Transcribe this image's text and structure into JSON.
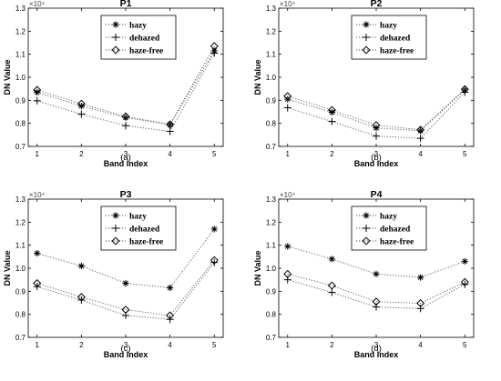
{
  "chart_data": [
    {
      "type": "line",
      "title": "P1",
      "caption": "(a)",
      "xlabel": "Band Index",
      "ylabel": "DN Value",
      "exponent": "×10⁴",
      "x": [
        1,
        2,
        3,
        4,
        5
      ],
      "x_ticks": [
        "1",
        "2",
        "3",
        "4",
        "5"
      ],
      "y_ticks": [
        "0.7",
        "0.8",
        "0.9",
        "1.0",
        "1.1",
        "1.2",
        "1.3"
      ],
      "xlim": [
        0.8,
        5.2
      ],
      "ylim": [
        0.7,
        1.3
      ],
      "legend_position": "top-center",
      "series": [
        {
          "name": "hazy",
          "marker": "asterisk",
          "values": [
            0.935,
            0.875,
            0.825,
            0.795,
            1.115
          ]
        },
        {
          "name": "dehazed",
          "marker": "plus",
          "values": [
            0.898,
            0.84,
            0.79,
            0.765,
            1.105
          ]
        },
        {
          "name": "haze-free",
          "marker": "diamond",
          "values": [
            0.945,
            0.885,
            0.83,
            0.795,
            1.135
          ]
        }
      ]
    },
    {
      "type": "line",
      "title": "P2",
      "caption": "(b)",
      "xlabel": "Band Index",
      "ylabel": "DN Value",
      "exponent": "×10⁴",
      "x": [
        1,
        2,
        3,
        4,
        5
      ],
      "x_ticks": [
        "1",
        "2",
        "3",
        "4",
        "5"
      ],
      "y_ticks": [
        "0.7",
        "0.8",
        "0.9",
        "1.0",
        "1.1",
        "1.2",
        "1.3"
      ],
      "xlim": [
        0.8,
        5.2
      ],
      "ylim": [
        0.7,
        1.3
      ],
      "legend_position": "top-center",
      "series": [
        {
          "name": "hazy",
          "marker": "asterisk",
          "values": [
            0.905,
            0.848,
            0.78,
            0.768,
            0.945
          ]
        },
        {
          "name": "dehazed",
          "marker": "plus",
          "values": [
            0.868,
            0.808,
            0.745,
            0.735,
            0.935
          ]
        },
        {
          "name": "haze-free",
          "marker": "diamond",
          "values": [
            0.918,
            0.858,
            0.792,
            0.772,
            0.948
          ]
        }
      ]
    },
    {
      "type": "line",
      "title": "P3",
      "caption": "(c)",
      "xlabel": "Band Index",
      "ylabel": "DN Value",
      "exponent": "×10⁴",
      "x": [
        1,
        2,
        3,
        4,
        5
      ],
      "x_ticks": [
        "1",
        "2",
        "3",
        "4",
        "5"
      ],
      "y_ticks": [
        "0.7",
        "0.8",
        "0.9",
        "1.0",
        "1.1",
        "1.2",
        "1.3"
      ],
      "xlim": [
        0.8,
        5.2
      ],
      "ylim": [
        0.7,
        1.3
      ],
      "legend_position": "top-center",
      "series": [
        {
          "name": "hazy",
          "marker": "asterisk",
          "values": [
            1.065,
            1.01,
            0.935,
            0.915,
            1.17
          ]
        },
        {
          "name": "dehazed",
          "marker": "plus",
          "values": [
            0.92,
            0.862,
            0.795,
            0.778,
            1.025
          ]
        },
        {
          "name": "haze-free",
          "marker": "diamond",
          "values": [
            0.935,
            0.875,
            0.82,
            0.795,
            1.035
          ]
        }
      ]
    },
    {
      "type": "line",
      "title": "P4",
      "caption": "(d)",
      "xlabel": "Band Index",
      "ylabel": "DN Value",
      "exponent": "×10⁴",
      "x": [
        1,
        2,
        3,
        4,
        5
      ],
      "x_ticks": [
        "1",
        "2",
        "3",
        "4",
        "5"
      ],
      "y_ticks": [
        "0.7",
        "0.8",
        "0.9",
        "1.0",
        "1.1",
        "1.2",
        "1.3"
      ],
      "xlim": [
        0.8,
        5.2
      ],
      "ylim": [
        0.7,
        1.3
      ],
      "legend_position": "top-center",
      "series": [
        {
          "name": "hazy",
          "marker": "asterisk",
          "values": [
            1.095,
            1.04,
            0.975,
            0.96,
            1.03
          ]
        },
        {
          "name": "dehazed",
          "marker": "plus",
          "values": [
            0.95,
            0.895,
            0.832,
            0.825,
            0.93
          ]
        },
        {
          "name": "haze-free",
          "marker": "diamond",
          "values": [
            0.975,
            0.925,
            0.855,
            0.848,
            0.94
          ]
        }
      ]
    }
  ]
}
